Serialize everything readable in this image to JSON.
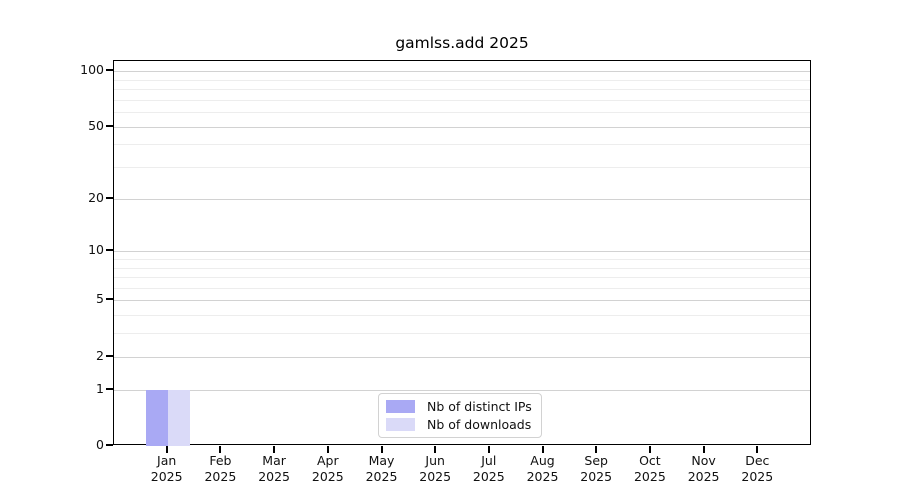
{
  "chart_data": {
    "type": "bar",
    "title": "gamlss.add 2025",
    "year": "2025",
    "categories": [
      "Jan",
      "Feb",
      "Mar",
      "Apr",
      "May",
      "Jun",
      "Jul",
      "Aug",
      "Sep",
      "Oct",
      "Nov",
      "Dec"
    ],
    "series": [
      {
        "name": "Nb of distinct IPs",
        "color": "#a9a9f4",
        "values": [
          1,
          0,
          0,
          0,
          0,
          0,
          0,
          0,
          0,
          0,
          0,
          0
        ]
      },
      {
        "name": "Nb of downloads",
        "color": "#dadaf8",
        "values": [
          1,
          0,
          0,
          0,
          0,
          0,
          0,
          0,
          0,
          0,
          0,
          0
        ]
      }
    ],
    "xlabel": "",
    "ylabel": "",
    "yscale": "log1p",
    "ylim": [
      0,
      100
    ],
    "yticks": [
      0,
      1,
      2,
      5,
      10,
      20,
      50,
      100
    ],
    "ygrid_minor": [
      3,
      4,
      6,
      7,
      8,
      9,
      30,
      40,
      60,
      70,
      80,
      90
    ],
    "grid": "horizontal",
    "legend_position": "bottom-center",
    "colors": {
      "axis": "#000000",
      "grid_major": "#d2d2d2",
      "grid_minor": "#ededed",
      "background": "#ffffff"
    }
  }
}
